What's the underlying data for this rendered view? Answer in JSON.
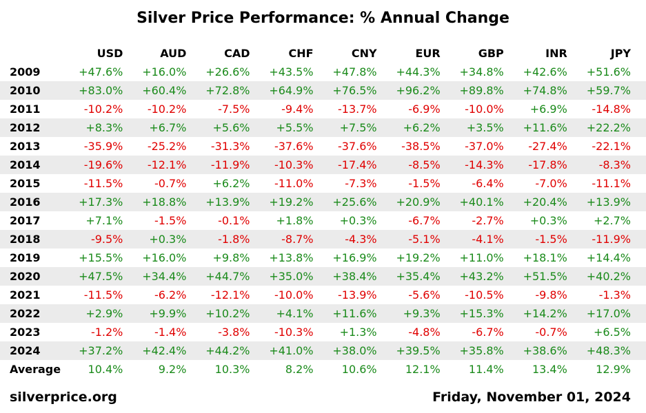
{
  "title": "Silver Price Performance: % Annual Change",
  "footer": {
    "source": "silverprice.org",
    "date": "Friday, November 01, 2024"
  },
  "colors": {
    "positive": "#1a8a1a",
    "negative": "#e00000",
    "row_shade": "#ebebeb"
  },
  "chart_data": {
    "type": "table",
    "title": "Silver Price Performance: % Annual Change",
    "columns": [
      "USD",
      "AUD",
      "CAD",
      "CHF",
      "CNY",
      "EUR",
      "GBP",
      "INR",
      "JPY"
    ],
    "rows": [
      {
        "label": "2009",
        "values": [
          "+47.6%",
          "+16.0%",
          "+26.6%",
          "+43.5%",
          "+47.8%",
          "+44.3%",
          "+34.8%",
          "+42.6%",
          "+51.6%"
        ]
      },
      {
        "label": "2010",
        "values": [
          "+83.0%",
          "+60.4%",
          "+72.8%",
          "+64.9%",
          "+76.5%",
          "+96.2%",
          "+89.8%",
          "+74.8%",
          "+59.7%"
        ]
      },
      {
        "label": "2011",
        "values": [
          "-10.2%",
          "-10.2%",
          "-7.5%",
          "-9.4%",
          "-13.7%",
          "-6.9%",
          "-10.0%",
          "+6.9%",
          "-14.8%"
        ]
      },
      {
        "label": "2012",
        "values": [
          "+8.3%",
          "+6.7%",
          "+5.6%",
          "+5.5%",
          "+7.5%",
          "+6.2%",
          "+3.5%",
          "+11.6%",
          "+22.2%"
        ]
      },
      {
        "label": "2013",
        "values": [
          "-35.9%",
          "-25.2%",
          "-31.3%",
          "-37.6%",
          "-37.6%",
          "-38.5%",
          "-37.0%",
          "-27.4%",
          "-22.1%"
        ]
      },
      {
        "label": "2014",
        "values": [
          "-19.6%",
          "-12.1%",
          "-11.9%",
          "-10.3%",
          "-17.4%",
          "-8.5%",
          "-14.3%",
          "-17.8%",
          "-8.3%"
        ]
      },
      {
        "label": "2015",
        "values": [
          "-11.5%",
          "-0.7%",
          "+6.2%",
          "-11.0%",
          "-7.3%",
          "-1.5%",
          "-6.4%",
          "-7.0%",
          "-11.1%"
        ]
      },
      {
        "label": "2016",
        "values": [
          "+17.3%",
          "+18.8%",
          "+13.9%",
          "+19.2%",
          "+25.6%",
          "+20.9%",
          "+40.1%",
          "+20.4%",
          "+13.9%"
        ]
      },
      {
        "label": "2017",
        "values": [
          "+7.1%",
          "-1.5%",
          "-0.1%",
          "+1.8%",
          "+0.3%",
          "-6.7%",
          "-2.7%",
          "+0.3%",
          "+2.7%"
        ]
      },
      {
        "label": "2018",
        "values": [
          "-9.5%",
          "+0.3%",
          "-1.8%",
          "-8.7%",
          "-4.3%",
          "-5.1%",
          "-4.1%",
          "-1.5%",
          "-11.9%"
        ]
      },
      {
        "label": "2019",
        "values": [
          "+15.5%",
          "+16.0%",
          "+9.8%",
          "+13.8%",
          "+16.9%",
          "+19.2%",
          "+11.0%",
          "+18.1%",
          "+14.4%"
        ]
      },
      {
        "label": "2020",
        "values": [
          "+47.5%",
          "+34.4%",
          "+44.7%",
          "+35.0%",
          "+38.4%",
          "+35.4%",
          "+43.2%",
          "+51.5%",
          "+40.2%"
        ]
      },
      {
        "label": "2021",
        "values": [
          "-11.5%",
          "-6.2%",
          "-12.1%",
          "-10.0%",
          "-13.9%",
          "-5.6%",
          "-10.5%",
          "-9.8%",
          "-1.3%"
        ]
      },
      {
        "label": "2022",
        "values": [
          "+2.9%",
          "+9.9%",
          "+10.2%",
          "+4.1%",
          "+11.6%",
          "+9.3%",
          "+15.3%",
          "+14.2%",
          "+17.0%"
        ]
      },
      {
        "label": "2023",
        "values": [
          "-1.2%",
          "-1.4%",
          "-3.8%",
          "-10.3%",
          "+1.3%",
          "-4.8%",
          "-6.7%",
          "-0.7%",
          "+6.5%"
        ]
      },
      {
        "label": "2024",
        "values": [
          "+37.2%",
          "+42.4%",
          "+44.2%",
          "+41.0%",
          "+38.0%",
          "+39.5%",
          "+35.8%",
          "+38.6%",
          "+48.3%"
        ]
      }
    ],
    "average": {
      "label": "Average",
      "values": [
        "10.4%",
        "9.2%",
        "10.3%",
        "8.2%",
        "10.6%",
        "12.1%",
        "11.4%",
        "13.4%",
        "12.9%"
      ]
    }
  }
}
